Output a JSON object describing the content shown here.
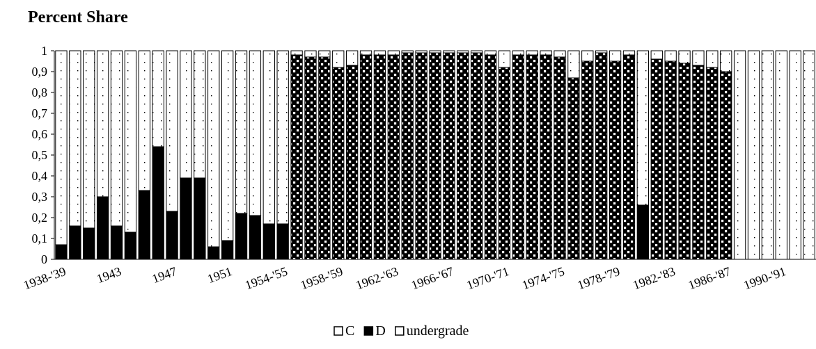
{
  "chart_data": {
    "type": "bar",
    "stacked": true,
    "title": "Percent Share",
    "xlabel": "",
    "ylabel": "",
    "ylim": [
      0,
      1
    ],
    "yticks": [
      "0",
      "0,1",
      "0,2",
      "0,3",
      "0,4",
      "0,5",
      "0,6",
      "0,7",
      "0,8",
      "0,9",
      "1"
    ],
    "x_tick_labels": [
      "1938-'39",
      "1943",
      "1947",
      "1951",
      "1954-'55",
      "1958-'59",
      "1962-'63",
      "1966-'67",
      "1970-'71",
      "1974-'75",
      "1978-'79",
      "1982-'83",
      "1986-'87",
      "1990-'91"
    ],
    "x_tick_positions": [
      0,
      4,
      8,
      12,
      16,
      20,
      24,
      28,
      32,
      36,
      40,
      44,
      48,
      52
    ],
    "category_count": 55,
    "legend_position": "bottom-center",
    "series": [
      {
        "name": "C",
        "pattern": "checker",
        "values": [
          0,
          0,
          0,
          0,
          0,
          0,
          0,
          0,
          0,
          0,
          0,
          0,
          0,
          0,
          0,
          0,
          0,
          0.98,
          0.97,
          0.97,
          0.92,
          0.93,
          0.98,
          0.98,
          0.98,
          0.99,
          0.99,
          0.99,
          0.99,
          0.99,
          0.99,
          0.98,
          0.92,
          0.98,
          0.98,
          0.98,
          0.97,
          0.87,
          0.95,
          0.99,
          0.95,
          0.98,
          0,
          0.96,
          0.95,
          0.94,
          0.93,
          0.92,
          0.9,
          0,
          0,
          0,
          0,
          0,
          0
        ]
      },
      {
        "name": "D",
        "pattern": "solid",
        "values": [
          0.07,
          0.16,
          0.15,
          0.3,
          0.16,
          0.13,
          0.33,
          0.54,
          0.23,
          0.39,
          0.39,
          0.06,
          0.09,
          0.22,
          0.21,
          0.17,
          0.17,
          0,
          0,
          0,
          0,
          0,
          0,
          0,
          0,
          0,
          0,
          0,
          0,
          0,
          0,
          0,
          0,
          0,
          0,
          0,
          0,
          0,
          0,
          0,
          0,
          0,
          0.26,
          0,
          0,
          0,
          0,
          0,
          0,
          0,
          0,
          0,
          0,
          0,
          0
        ]
      },
      {
        "name": "undergrade",
        "pattern": "dotted",
        "values": [
          0.93,
          0.84,
          0.85,
          0.7,
          0.84,
          0.87,
          0.67,
          0.46,
          0.77,
          0.61,
          0.61,
          0.94,
          0.91,
          0.78,
          0.79,
          0.83,
          0.83,
          0.02,
          0.03,
          0.03,
          0.08,
          0.07,
          0.02,
          0.02,
          0.02,
          0.01,
          0.01,
          0.01,
          0.01,
          0.01,
          0.01,
          0.02,
          0.08,
          0.02,
          0.02,
          0.02,
          0.03,
          0.13,
          0.05,
          0.01,
          0.05,
          0.02,
          0.74,
          0.04,
          0.05,
          0.06,
          0.07,
          0.08,
          0.1,
          1,
          1,
          1,
          1,
          1,
          1
        ]
      }
    ]
  }
}
